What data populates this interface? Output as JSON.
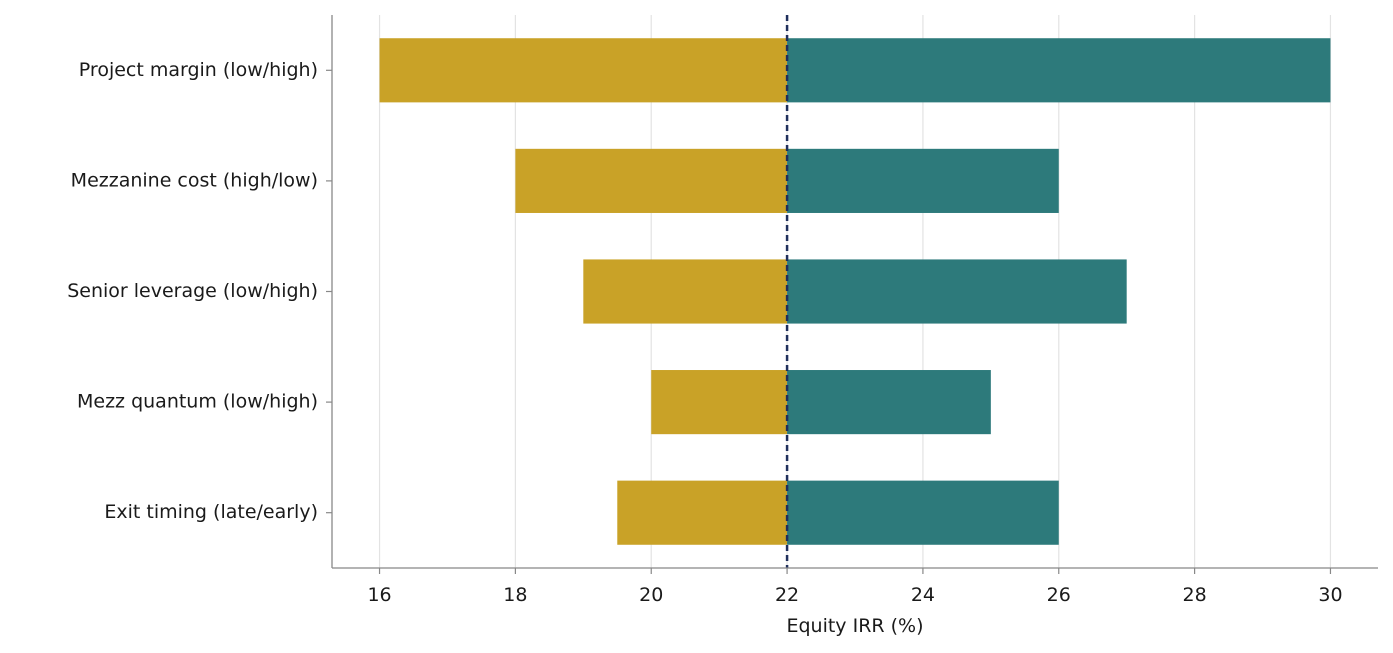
{
  "chart_data": {
    "type": "bar",
    "orientation": "horizontal",
    "variant": "tornado",
    "xlabel": "Equity IRR (%)",
    "ylabel": "",
    "xlim": [
      15.3,
      30.7
    ],
    "xticks": [
      16,
      18,
      20,
      22,
      24,
      26,
      28,
      30
    ],
    "base_value": 22,
    "grid": "vertical",
    "categories": [
      "Project margin (low/high)",
      "Mezzanine cost (high/low)",
      "Senior leverage (low/high)",
      "Mezz quantum (low/high)",
      "Exit timing (late/early)"
    ],
    "series": [
      {
        "values": [
          16,
          18,
          19,
          20,
          19.5
        ]
      },
      {
        "values": [
          30,
          26,
          27,
          25,
          26
        ]
      }
    ],
    "colors": {
      "low": "#c9a227",
      "high": "#2d7a7b",
      "base_line": "#1f2f5c",
      "grid": "#e3e3e3",
      "axis": "#888888"
    }
  }
}
